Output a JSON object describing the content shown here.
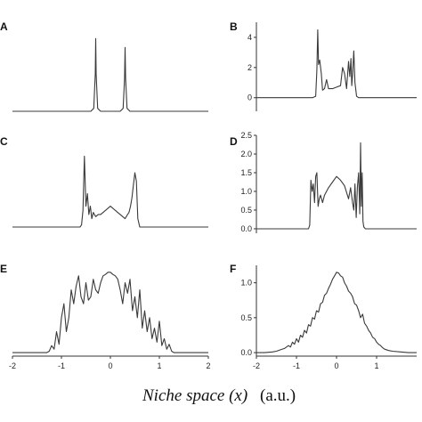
{
  "figure": {
    "xlabel_main": "Niche space (x)",
    "xlabel_unit": "(a.u.)"
  },
  "chart_data": [
    {
      "type": "line",
      "panel": "A",
      "xlim": [
        -2,
        2
      ],
      "ylim": [
        0,
        6
      ],
      "show_y_ticks": false,
      "show_x_ticks": false,
      "yticks": [],
      "xticks": [],
      "x": [
        -2.0,
        -1.0,
        -0.4,
        -0.34,
        -0.31,
        -0.3,
        -0.29,
        -0.26,
        -0.2,
        0.2,
        0.26,
        0.29,
        0.3,
        0.31,
        0.34,
        0.4,
        1.0,
        2.0
      ],
      "y": [
        0,
        0,
        0,
        0.2,
        2.5,
        4.9,
        2.5,
        0.2,
        0,
        0,
        0.2,
        2.2,
        4.3,
        2.2,
        0.2,
        0,
        0,
        0
      ]
    },
    {
      "type": "line",
      "panel": "B",
      "xlim": [
        -2,
        2
      ],
      "ylim": [
        -0.9,
        5
      ],
      "show_y_ticks": true,
      "show_x_ticks": false,
      "yticks": [
        0,
        2,
        4
      ],
      "xticks": [],
      "x": [
        -2.0,
        -0.6,
        -0.52,
        -0.49,
        -0.47,
        -0.45,
        -0.42,
        -0.38,
        -0.35,
        -0.3,
        -0.25,
        -0.2,
        -0.1,
        0.0,
        0.1,
        0.15,
        0.2,
        0.25,
        0.3,
        0.33,
        0.36,
        0.38,
        0.4,
        0.43,
        0.46,
        0.5,
        0.55,
        0.6,
        2.0
      ],
      "y": [
        0,
        0,
        0.1,
        1.8,
        4.5,
        2.2,
        2.5,
        1.6,
        0.5,
        0.6,
        1.2,
        0.6,
        0.6,
        0.7,
        0.8,
        2.0,
        1.6,
        0.6,
        2.4,
        1.4,
        2.6,
        0.8,
        1.5,
        3.1,
        1.0,
        0.1,
        0,
        0,
        0
      ]
    },
    {
      "type": "line",
      "panel": "C",
      "xlim": [
        -2,
        2
      ],
      "ylim": [
        -0.15,
        2.2
      ],
      "show_y_ticks": false,
      "show_x_ticks": false,
      "yticks": [],
      "xticks": [],
      "x": [
        -2.0,
        -0.62,
        -0.59,
        -0.56,
        -0.53,
        -0.5,
        -0.47,
        -0.44,
        -0.41,
        -0.38,
        -0.35,
        -0.3,
        -0.25,
        -0.2,
        -0.1,
        0.0,
        0.1,
        0.2,
        0.3,
        0.35,
        0.38,
        0.41,
        0.44,
        0.47,
        0.5,
        0.53,
        0.56,
        0.6,
        2.0
      ],
      "y": [
        0,
        0,
        0.05,
        0.4,
        1.7,
        0.5,
        0.8,
        0.3,
        0.5,
        0.2,
        0.35,
        0.25,
        0.3,
        0.3,
        0.4,
        0.5,
        0.4,
        0.3,
        0.2,
        0.3,
        0.35,
        0.5,
        0.7,
        1.0,
        1.3,
        1.1,
        0.2,
        0,
        0
      ]
    },
    {
      "type": "line",
      "panel": "D",
      "xlim": [
        -2,
        2
      ],
      "ylim": [
        -0.12,
        2.5
      ],
      "show_y_ticks": true,
      "show_x_ticks": false,
      "yticks": [
        0.0,
        0.5,
        1.0,
        1.5,
        2.0,
        2.5
      ],
      "xticks": [],
      "x": [
        -2.0,
        -0.7,
        -0.67,
        -0.64,
        -0.61,
        -0.58,
        -0.55,
        -0.52,
        -0.49,
        -0.46,
        -0.43,
        -0.4,
        -0.35,
        -0.3,
        -0.2,
        -0.1,
        0.0,
        0.1,
        0.2,
        0.3,
        0.35,
        0.4,
        0.43,
        0.46,
        0.49,
        0.52,
        0.55,
        0.58,
        0.6,
        0.62,
        0.64,
        0.66,
        0.68,
        0.72,
        2.0
      ],
      "y": [
        0,
        0,
        0.1,
        1.3,
        1.0,
        1.2,
        0.7,
        1.4,
        1.5,
        0.6,
        0.8,
        0.9,
        0.7,
        0.9,
        1.1,
        1.25,
        1.4,
        1.3,
        1.15,
        0.8,
        1.1,
        0.7,
        0.5,
        1.2,
        0.3,
        1.1,
        1.5,
        0.4,
        2.3,
        0.6,
        1.5,
        0.2,
        0.05,
        0,
        0
      ]
    },
    {
      "type": "line",
      "panel": "E",
      "xlim": [
        -2,
        2
      ],
      "ylim": [
        -0.05,
        1.25
      ],
      "show_y_ticks": false,
      "show_x_ticks": true,
      "yticks": [],
      "xticks": [
        -2,
        -1,
        0,
        1,
        2
      ],
      "x": [
        -2.0,
        -1.3,
        -1.25,
        -1.2,
        -1.15,
        -1.1,
        -1.05,
        -1.0,
        -0.95,
        -0.9,
        -0.85,
        -0.8,
        -0.75,
        -0.7,
        -0.65,
        -0.6,
        -0.55,
        -0.5,
        -0.45,
        -0.4,
        -0.35,
        -0.3,
        -0.25,
        -0.2,
        -0.15,
        -0.1,
        -0.05,
        0.0,
        0.05,
        0.1,
        0.15,
        0.2,
        0.25,
        0.3,
        0.35,
        0.4,
        0.45,
        0.5,
        0.55,
        0.6,
        0.65,
        0.7,
        0.75,
        0.8,
        0.85,
        0.9,
        0.95,
        1.0,
        1.05,
        1.1,
        1.15,
        1.2,
        1.25,
        1.3,
        2.0
      ],
      "y": [
        0,
        0,
        0.02,
        0.1,
        0.05,
        0.3,
        0.12,
        0.5,
        0.7,
        0.3,
        0.5,
        0.9,
        0.7,
        0.95,
        1.1,
        0.8,
        0.7,
        1.0,
        0.75,
        0.8,
        1.05,
        0.9,
        0.85,
        1.0,
        1.1,
        1.12,
        1.15,
        1.15,
        1.12,
        1.1,
        1.05,
        0.9,
        0.7,
        1.0,
        0.85,
        1.05,
        0.6,
        0.8,
        0.5,
        0.9,
        0.35,
        0.6,
        0.3,
        0.5,
        0.2,
        0.35,
        0.15,
        0.45,
        0.1,
        0.2,
        0.05,
        0.12,
        0.02,
        0,
        0
      ]
    },
    {
      "type": "line",
      "panel": "F",
      "xlim": [
        -2,
        2
      ],
      "ylim": [
        -0.05,
        1.25
      ],
      "show_y_ticks": true,
      "show_x_ticks": true,
      "yticks": [
        0.0,
        0.5,
        1.0
      ],
      "xticks": [
        -2,
        -1,
        0,
        1
      ],
      "x": [
        -2.0,
        -1.8,
        -1.6,
        -1.5,
        -1.4,
        -1.3,
        -1.2,
        -1.15,
        -1.1,
        -1.05,
        -1.0,
        -0.95,
        -0.9,
        -0.85,
        -0.8,
        -0.75,
        -0.7,
        -0.65,
        -0.6,
        -0.55,
        -0.5,
        -0.45,
        -0.4,
        -0.35,
        -0.3,
        -0.25,
        -0.2,
        -0.15,
        -0.1,
        -0.05,
        0.0,
        0.05,
        0.1,
        0.15,
        0.2,
        0.25,
        0.3,
        0.35,
        0.4,
        0.45,
        0.5,
        0.55,
        0.6,
        0.65,
        0.7,
        0.75,
        0.8,
        0.85,
        0.9,
        0.95,
        1.0,
        1.05,
        1.1,
        1.15,
        1.2,
        1.3,
        1.4,
        1.6,
        1.8,
        2.0
      ],
      "y": [
        0,
        0,
        0.01,
        0.02,
        0.04,
        0.06,
        0.1,
        0.08,
        0.15,
        0.12,
        0.2,
        0.15,
        0.25,
        0.22,
        0.32,
        0.28,
        0.4,
        0.38,
        0.5,
        0.48,
        0.6,
        0.58,
        0.7,
        0.72,
        0.82,
        0.85,
        0.92,
        0.98,
        1.05,
        1.1,
        1.15,
        1.14,
        1.1,
        1.08,
        1.0,
        0.95,
        0.88,
        0.85,
        0.8,
        0.7,
        0.68,
        0.6,
        0.5,
        0.55,
        0.42,
        0.38,
        0.32,
        0.28,
        0.22,
        0.2,
        0.15,
        0.12,
        0.1,
        0.07,
        0.05,
        0.03,
        0.02,
        0.01,
        0,
        0
      ]
    }
  ]
}
